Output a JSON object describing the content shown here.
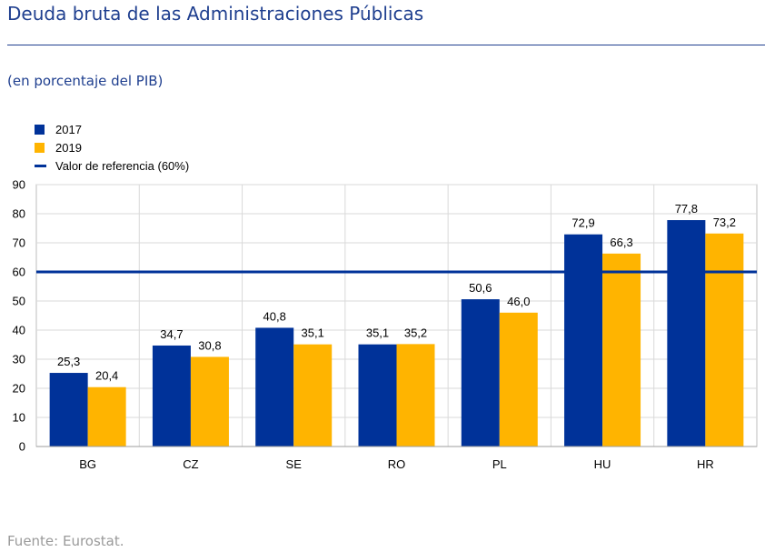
{
  "header": {
    "title": "Deuda bruta de las Administraciones Públicas",
    "subtitle": "(en porcentaje del PIB)"
  },
  "footer": {
    "source": "Fuente: Eurostat."
  },
  "legend": [
    {
      "label": "2017",
      "color": "#003299",
      "kind": "bar"
    },
    {
      "label": "2019",
      "color": "#ffb400",
      "kind": "bar"
    },
    {
      "label": "Valor de referencia (60%)",
      "color": "#003299",
      "kind": "line"
    }
  ],
  "chart_data": {
    "type": "bar",
    "categories": [
      "BG",
      "CZ",
      "SE",
      "RO",
      "PL",
      "HU",
      "HR"
    ],
    "series": [
      {
        "name": "2017",
        "color": "#003299",
        "values": [
          25.3,
          34.7,
          40.8,
          35.1,
          50.6,
          72.9,
          77.8
        ],
        "labels": [
          "25,3",
          "34,7",
          "40,8",
          "35,1",
          "50,6",
          "72,9",
          "77,8"
        ]
      },
      {
        "name": "2019",
        "color": "#ffb400",
        "values": [
          20.4,
          30.8,
          35.1,
          35.2,
          46.0,
          66.3,
          73.2
        ],
        "labels": [
          "20,4",
          "30,8",
          "35,1",
          "35,2",
          "46,0",
          "66,3",
          "73,2"
        ]
      }
    ],
    "reference_line": {
      "name": "Valor de referencia (60%)",
      "value": 60,
      "color": "#003299"
    },
    "ylim": [
      0,
      90
    ],
    "yticks": [
      0,
      10,
      20,
      30,
      40,
      50,
      60,
      70,
      80,
      90
    ],
    "grid": true,
    "legend_position": "top-left"
  }
}
